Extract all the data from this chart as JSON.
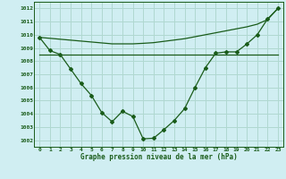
{
  "title": "Graphe pression niveau de la mer (hPa)",
  "background_color": "#d0eef2",
  "grid_color": "#b0d8d0",
  "line_color": "#1a5c1a",
  "xlim": [
    -0.5,
    23.5
  ],
  "ylim": [
    1001.5,
    1012.5
  ],
  "yticks": [
    1002,
    1003,
    1004,
    1005,
    1006,
    1007,
    1008,
    1009,
    1010,
    1011,
    1012
  ],
  "xticks": [
    0,
    1,
    2,
    3,
    4,
    5,
    6,
    7,
    8,
    9,
    10,
    11,
    12,
    13,
    14,
    15,
    16,
    17,
    18,
    19,
    20,
    21,
    22,
    23
  ],
  "series1": [
    1009.8,
    1008.8,
    1008.5,
    1007.4,
    1006.3,
    1005.4,
    1004.1,
    1003.4,
    1004.2,
    1003.8,
    1002.1,
    1002.15,
    1002.8,
    1003.5,
    1004.4,
    1006.0,
    1007.5,
    1008.6,
    1008.7,
    1008.7,
    1009.3,
    1010.0,
    1011.2,
    1012.0
  ],
  "series2": [
    1008.5,
    1008.5,
    1008.5,
    1008.5,
    1008.5,
    1008.5,
    1008.5,
    1008.5,
    1008.5,
    1008.5,
    1008.5,
    1008.5,
    1008.5,
    1008.5,
    1008.5,
    1008.5,
    1008.5,
    1008.5,
    1008.5,
    1008.5,
    1008.5,
    1008.5,
    1008.5,
    1008.5
  ],
  "series3": [
    1009.8,
    1009.73,
    1009.66,
    1009.59,
    1009.52,
    1009.45,
    1009.38,
    1009.31,
    1009.31,
    1009.31,
    1009.35,
    1009.4,
    1009.5,
    1009.6,
    1009.7,
    1009.85,
    1010.0,
    1010.15,
    1010.3,
    1010.45,
    1010.6,
    1010.8,
    1011.15,
    1012.0
  ]
}
